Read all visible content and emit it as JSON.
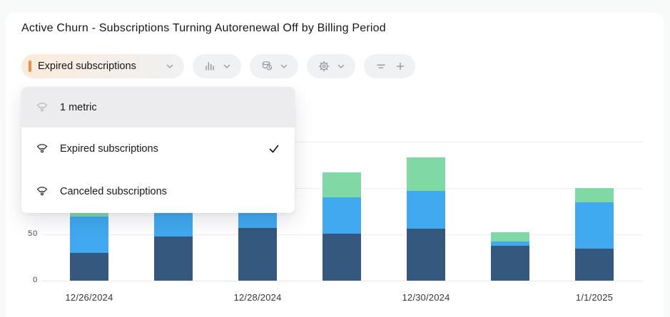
{
  "page": {
    "title": "Active Churn - Subscriptions Turning Autorenewal Off by Billing Period"
  },
  "toolbar": {
    "metric_selector": {
      "label": "Expired subscriptions",
      "accent_color": "#ef8e45"
    },
    "chart_type_button": {
      "icon": "bar-chart-icon"
    },
    "interval_button": {
      "icon": "database-clock-icon"
    },
    "settings_button": {
      "icon": "gear-icon"
    },
    "filter_button": {
      "icon": "filter-icon",
      "add_label": "+"
    }
  },
  "dropdown": {
    "header": {
      "icon": "gauge-metric-icon",
      "label": "1 metric"
    },
    "items": [
      {
        "icon": "gauge-metric-icon",
        "label": "Expired subscriptions",
        "selected": true
      },
      {
        "icon": "gauge-metric-icon",
        "label": "Canceled subscriptions",
        "selected": false
      }
    ]
  },
  "chart_data": {
    "type": "bar",
    "stacked": true,
    "title": "Active Churn - Subscriptions Turning Autorenewal Off by Billing Period",
    "categories": [
      "12/26/2024",
      "",
      "12/28/2024",
      "",
      "12/30/2024",
      "",
      "1/1/2025"
    ],
    "series": [
      {
        "name": "dark-blue-bottom",
        "color": "#35597e",
        "values": [
          30,
          48,
          57,
          51,
          56,
          38,
          35
        ]
      },
      {
        "name": "light-blue-middle",
        "color": "#41a9f0",
        "values": [
          39,
          30,
          21,
          39,
          41,
          4,
          50
        ]
      },
      {
        "name": "green-top",
        "color": "#80d9a4",
        "values": [
          5,
          0,
          0,
          27,
          36,
          10,
          15
        ]
      }
    ],
    "xlabel": "",
    "ylabel": "",
    "y_ticks": [
      0,
      50
    ],
    "gridline_values": [
      0,
      50,
      100,
      150
    ],
    "ylim": [
      0,
      175
    ],
    "grid": true,
    "legend_position": "none",
    "note": "tops of bars 2 and 3 are occluded by the open metrics dropdown"
  },
  "colors": {
    "accent_orange": "#ef8e45",
    "bar_dark_blue": "#35597e",
    "bar_light_blue": "#41a9f0",
    "bar_green": "#80d9a4"
  }
}
